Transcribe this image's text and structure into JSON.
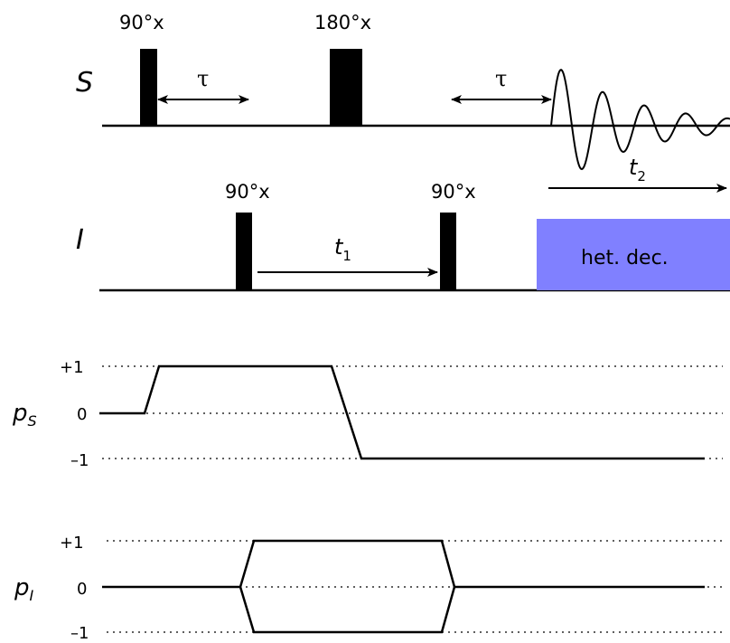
{
  "channels": {
    "s": {
      "symbol": "S"
    },
    "i": {
      "symbol": "I"
    }
  },
  "pulses": {
    "s_90": "90°x",
    "s_180": "180°x",
    "i_90_first": "90°x",
    "i_90_second": "90°x"
  },
  "delays": {
    "tau_first": "τ",
    "tau_second": "τ",
    "t1": {
      "base": "t",
      "sub": "1"
    },
    "t2": {
      "base": "t",
      "sub": "2"
    }
  },
  "decoupling": {
    "label": "het. dec.",
    "color": "#8080ff"
  },
  "coherence": {
    "ps": {
      "base": "p",
      "sub": "S"
    },
    "pi": {
      "base": "p",
      "sub": "I"
    },
    "levels": [
      "+1",
      "0",
      "–1"
    ]
  }
}
